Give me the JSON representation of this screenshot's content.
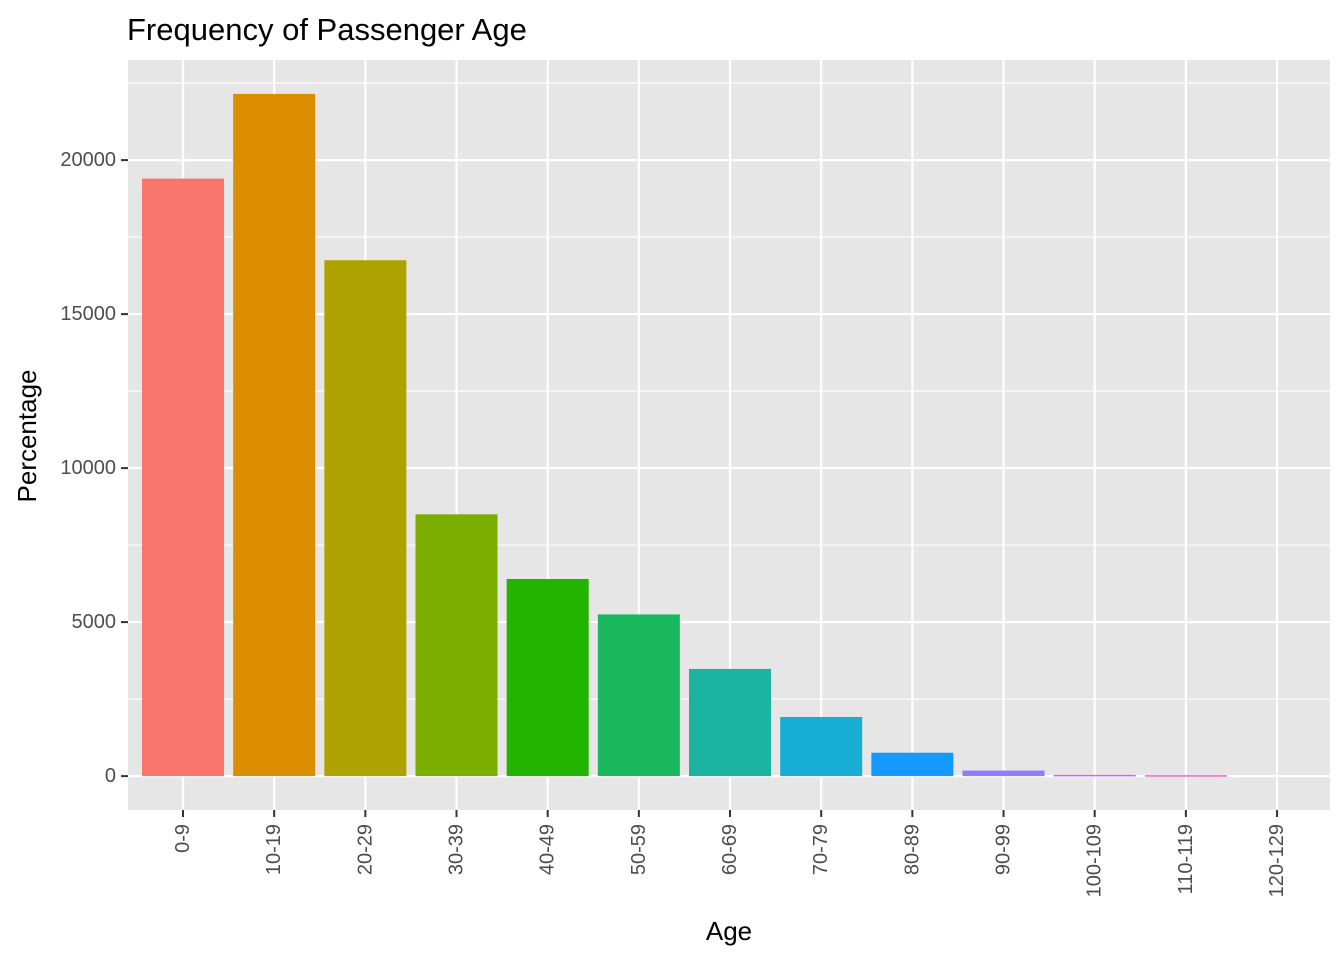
{
  "chart_data": {
    "type": "bar",
    "title": "Frequency of Passenger Age",
    "xlabel": "Age",
    "ylabel": "Percentage",
    "categories": [
      "0-9",
      "10-19",
      "20-29",
      "30-39",
      "40-49",
      "50-59",
      "60-69",
      "70-79",
      "80-89",
      "90-99",
      "100-109",
      "110-119",
      "120-129"
    ],
    "values": [
      19400,
      22150,
      16750,
      8500,
      6400,
      5250,
      3480,
      1920,
      760,
      180,
      40,
      30,
      0
    ],
    "colors": [
      "#F8766D",
      "#DB8E00",
      "#AEA200",
      "#7CAE00",
      "#22B400",
      "#19B85E",
      "#1AB4A0",
      "#17ADD5",
      "#1399FF",
      "#8F7CFF",
      "#D062FF",
      "#F160C7",
      "#FF6492"
    ],
    "y_ticks": [
      0,
      5000,
      10000,
      15000,
      20000
    ],
    "ylim": [
      -1100,
      23250
    ],
    "grid": true,
    "panel_background": "#E6E6E6",
    "grid_color": "#FFFFFF",
    "legend": "none"
  }
}
